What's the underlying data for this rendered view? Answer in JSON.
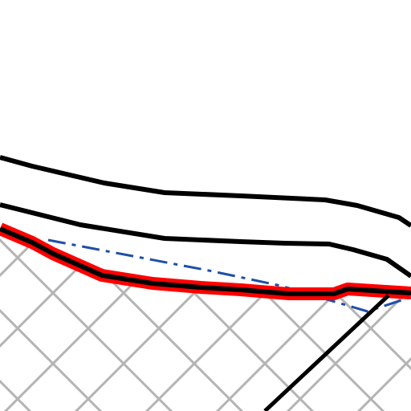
{
  "map": {
    "background_color": "#ffffff",
    "layers": [
      {
        "id": "parcel-hatch",
        "kind": "hatched-area",
        "color": "#b4b4b4"
      },
      {
        "id": "road-edge-upper",
        "kind": "line",
        "color": "#000000"
      },
      {
        "id": "road-edge-lower",
        "kind": "line",
        "color": "#000000"
      },
      {
        "id": "dash-dot-reference-line",
        "kind": "dash-dot-line",
        "color": "#1f4fa8"
      },
      {
        "id": "highlighted-boundary",
        "kind": "highlighted-line",
        "color": "#ff0000",
        "core_color": "#000000"
      },
      {
        "id": "diagonal-line",
        "kind": "line",
        "color": "#000000"
      }
    ]
  }
}
